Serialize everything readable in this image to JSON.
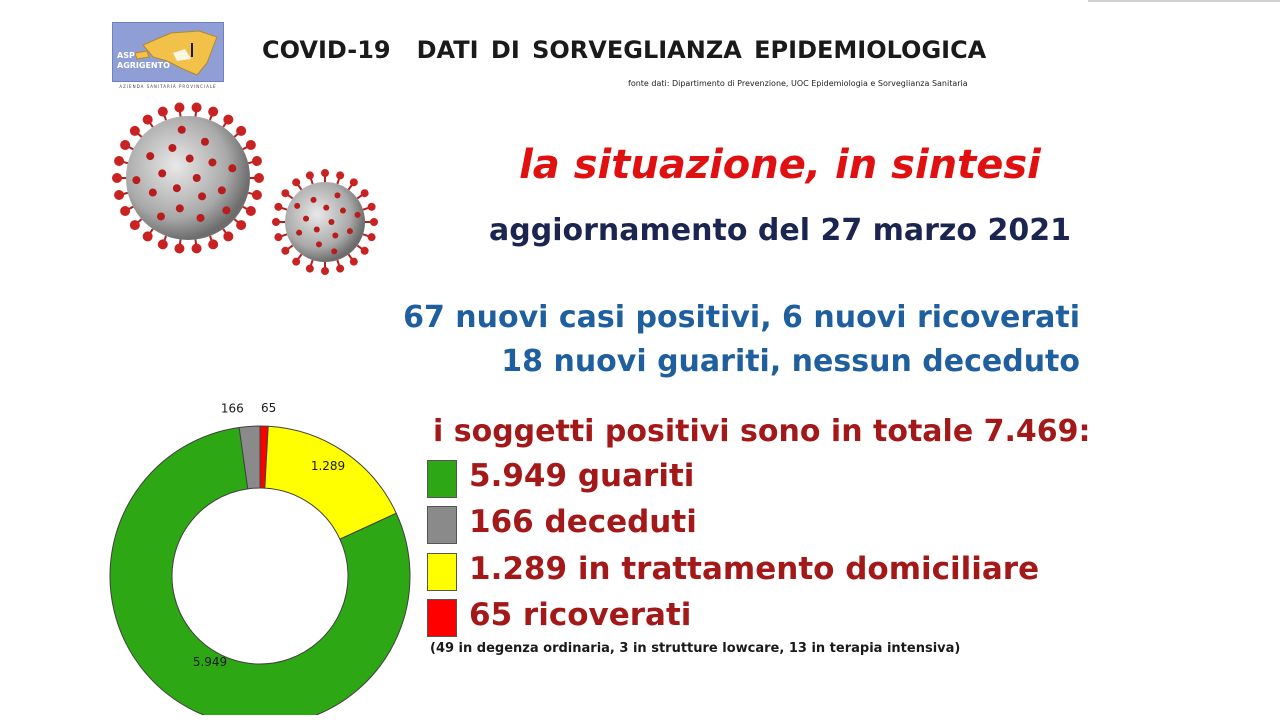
{
  "header": {
    "logo_text_1": "ASP",
    "logo_text_2": "AGRIGENTO",
    "logo_subtitle": "AZIENDA SANITARIA PROVINCIALE",
    "title_left": "COVID-19",
    "title_right": "DATI DI SORVEGLIANZA EPIDEMIOLOGICA",
    "source": "fonte dati: Dipartimento di Prevenzione, UOC Epidemiologia e Sorveglianza Sanitaria"
  },
  "headline": "la situazione, in sintesi",
  "update": "aggiornamento del 27 marzo 2021",
  "news": {
    "line1": "67 nuovi casi positivi, 6 nuovi ricoverati",
    "line2": "18 nuovi guariti, nessun deceduto"
  },
  "total_line": "i soggetti positivi sono in totale 7.469:",
  "legend": [
    {
      "label": "5.949 guariti",
      "color": "#2ea714"
    },
    {
      "label": "166 deceduti",
      "color": "#8a8a8a"
    },
    {
      "label": "1.289 in trattamento domiciliare",
      "color": "#ffff00"
    },
    {
      "label": "65 ricoverati",
      "color": "#ff0000"
    }
  ],
  "detail": "(49 in degenza ordinaria, 3 in strutture lowcare, 13 in terapia intensiva)",
  "colors": {
    "headline": "#e01010",
    "update": "#1c2550",
    "news": "#1f5f9e",
    "summary": "#a31818"
  },
  "chart_data": {
    "type": "pie",
    "donut": true,
    "start_angle_deg": 0,
    "direction": "clockwise",
    "categories": [
      "ricoverati",
      "trattamento domiciliare",
      "guariti",
      "deceduti"
    ],
    "values": [
      65,
      1289,
      5949,
      166
    ],
    "labels": [
      "65",
      "1.289",
      "5.949",
      "166"
    ],
    "colors": [
      "#ff0000",
      "#ffff00",
      "#2ea714",
      "#8a8a8a"
    ]
  }
}
